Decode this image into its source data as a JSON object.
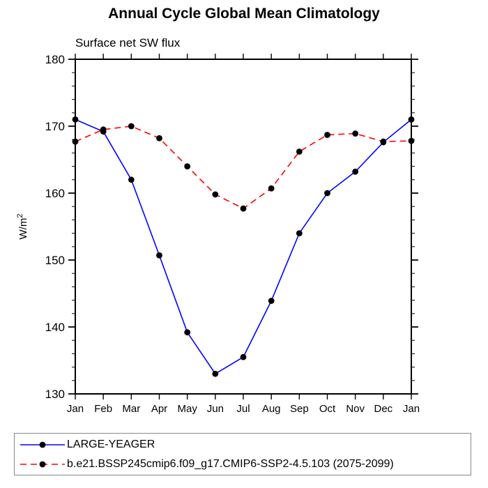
{
  "chart_data": {
    "type": "line",
    "title": "Annual Cycle Global Mean Climatology",
    "subtitle": "Surface net SW flux",
    "ylabel_base": "W/m",
    "ylabel_exp": "2",
    "categories": [
      "Jan",
      "Feb",
      "Mar",
      "Apr",
      "May",
      "Jun",
      "Jul",
      "Aug",
      "Sep",
      "Oct",
      "Nov",
      "Dec",
      "Jan"
    ],
    "ylim": [
      130,
      180
    ],
    "ytick_major": 10,
    "ytick_minor": 2,
    "grid": false,
    "legend_position": "bottom",
    "axis_color": "#000000",
    "series": [
      {
        "name": "LARGE-YEAGER",
        "color": "#0000ff",
        "style": "solid",
        "marker": "circle",
        "marker_color": "#000000",
        "values": [
          171.0,
          169.2,
          162.0,
          150.7,
          139.2,
          133.0,
          135.5,
          143.9,
          154.0,
          160.0,
          163.2,
          167.6,
          171.0
        ]
      },
      {
        "name": "b.e21.BSSP245cmip6.f09_g17.CMIP6-SSP2-4.5.103 (2075-2099)",
        "color": "#ff0000",
        "style": "dashed",
        "marker": "circle",
        "marker_color": "#000000",
        "values": [
          167.7,
          169.5,
          170.0,
          168.2,
          164.0,
          159.8,
          157.7,
          160.7,
          166.2,
          168.7,
          168.9,
          167.7,
          167.8
        ]
      }
    ]
  }
}
